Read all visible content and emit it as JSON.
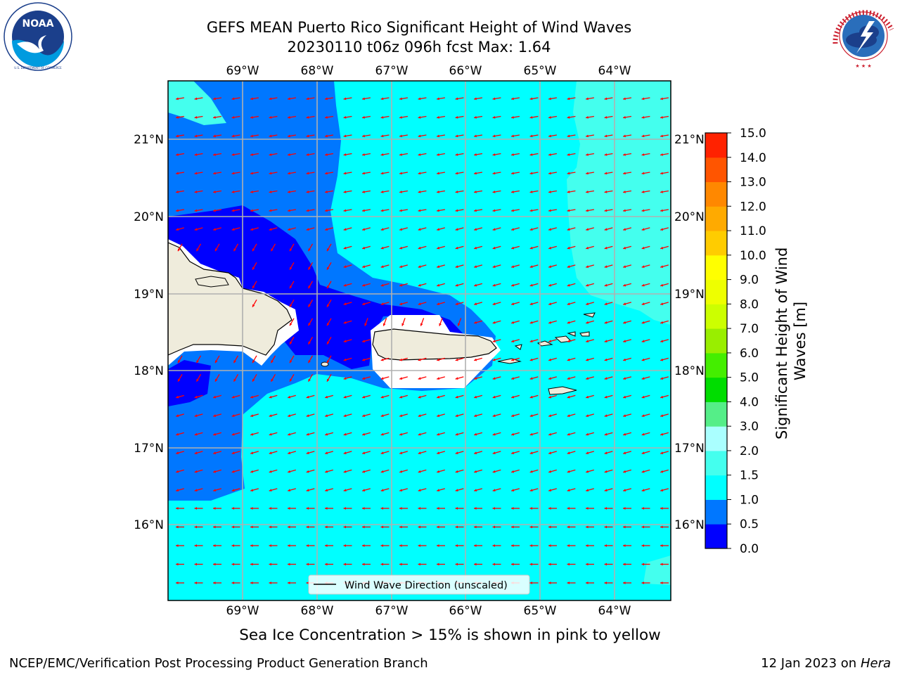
{
  "header": {
    "title_line1": "GEFS MEAN Puerto Rico Significant Height of Wind Waves",
    "title_line2": "20230110 t06z 096h fcst   Max: 1.64"
  },
  "logos": {
    "noaa": {
      "icon": "noaa-logo",
      "text": "NOAA",
      "ring_text": "NATIONAL OCEANIC AND ATMOSPHERIC ADMINISTRATION · U.S. DEPARTMENT OF COMMERCE"
    },
    "nws": {
      "icon": "nws-logo",
      "ring_text": "NATIONAL WEATHER SERVICE"
    }
  },
  "map": {
    "lon_labels": [
      "69°W",
      "68°W",
      "67°W",
      "66°W",
      "65°W",
      "64°W"
    ],
    "lat_labels": [
      "21°N",
      "20°N",
      "19°N",
      "18°N",
      "17°N",
      "16°N"
    ],
    "legend_label": "Wind Wave Direction (unscaled)",
    "land_color": "#efecdc",
    "vector_color": "#ff0000"
  },
  "colorbar": {
    "label": "Significant Height of Wind Waves [m]",
    "ticks": [
      "0.0",
      "0.5",
      "1.0",
      "1.5",
      "2.0",
      "3.0",
      "4.0",
      "5.0",
      "6.0",
      "7.0",
      "8.0",
      "9.0",
      "10.0",
      "11.0",
      "12.0",
      "13.0",
      "14.0",
      "15.0"
    ],
    "colors": [
      "#0000ff",
      "#0077ff",
      "#00ffff",
      "#44ffee",
      "#aaffff",
      "#55ee88",
      "#00dd00",
      "#44ee00",
      "#99ee00",
      "#ccff00",
      "#eeff00",
      "#ffff00",
      "#ffcc00",
      "#ffaa00",
      "#ff8800",
      "#ff5500",
      "#ff2200"
    ]
  },
  "footer": {
    "note": "Sea Ice Concentration > 15% is shown in pink to yellow",
    "left": "NCEP/EMC/Verification Post Processing Product Generation Branch",
    "date": "12 Jan 2023 on ",
    "host": "Hera"
  }
}
